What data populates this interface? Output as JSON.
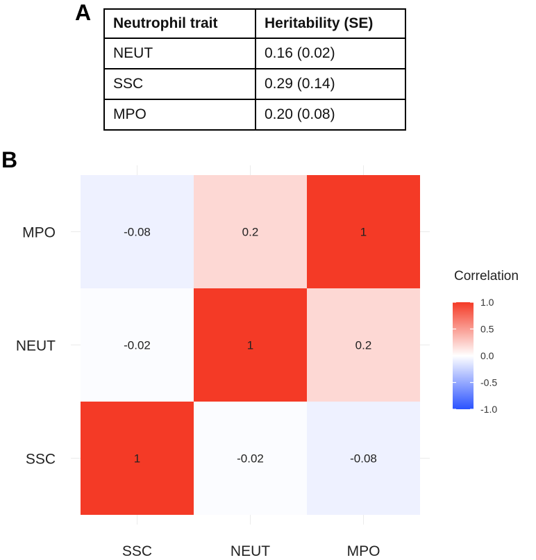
{
  "panel_a": {
    "label": "A",
    "table": {
      "headers": [
        "Neutrophil trait",
        "Heritability (SE)"
      ],
      "rows": [
        [
          "NEUT",
          "0.16 (0.02)"
        ],
        [
          "SSC",
          "0.29 (0.14)"
        ],
        [
          "MPO",
          "0.20 (0.08)"
        ]
      ]
    }
  },
  "panel_b": {
    "label": "B"
  },
  "chart_data": {
    "type": "heatmap",
    "title": "",
    "x_categories": [
      "SSC",
      "NEUT",
      "MPO"
    ],
    "y_categories": [
      "SSC",
      "NEUT",
      "MPO"
    ],
    "values": [
      [
        1,
        -0.02,
        -0.08
      ],
      [
        -0.02,
        1,
        0.2
      ],
      [
        -0.08,
        0.2,
        1
      ]
    ],
    "cell_labels": [
      [
        "1",
        "-0.02",
        "-0.08"
      ],
      [
        "-0.02",
        "1",
        "0.2"
      ],
      [
        "-0.08",
        "0.2",
        "1"
      ]
    ],
    "legend": {
      "title": "Correlation",
      "range": [
        -1,
        1
      ],
      "ticks": [
        1.0,
        0.5,
        0.0,
        -0.5,
        -1.0
      ],
      "tick_labels": [
        "1.0",
        "0.5",
        "0.0",
        "-0.5",
        "-1.0"
      ],
      "colors": {
        "low": "#2a52ff",
        "mid": "#ffffff",
        "high": "#f43a26"
      },
      "placement": "right"
    },
    "grid": true
  }
}
